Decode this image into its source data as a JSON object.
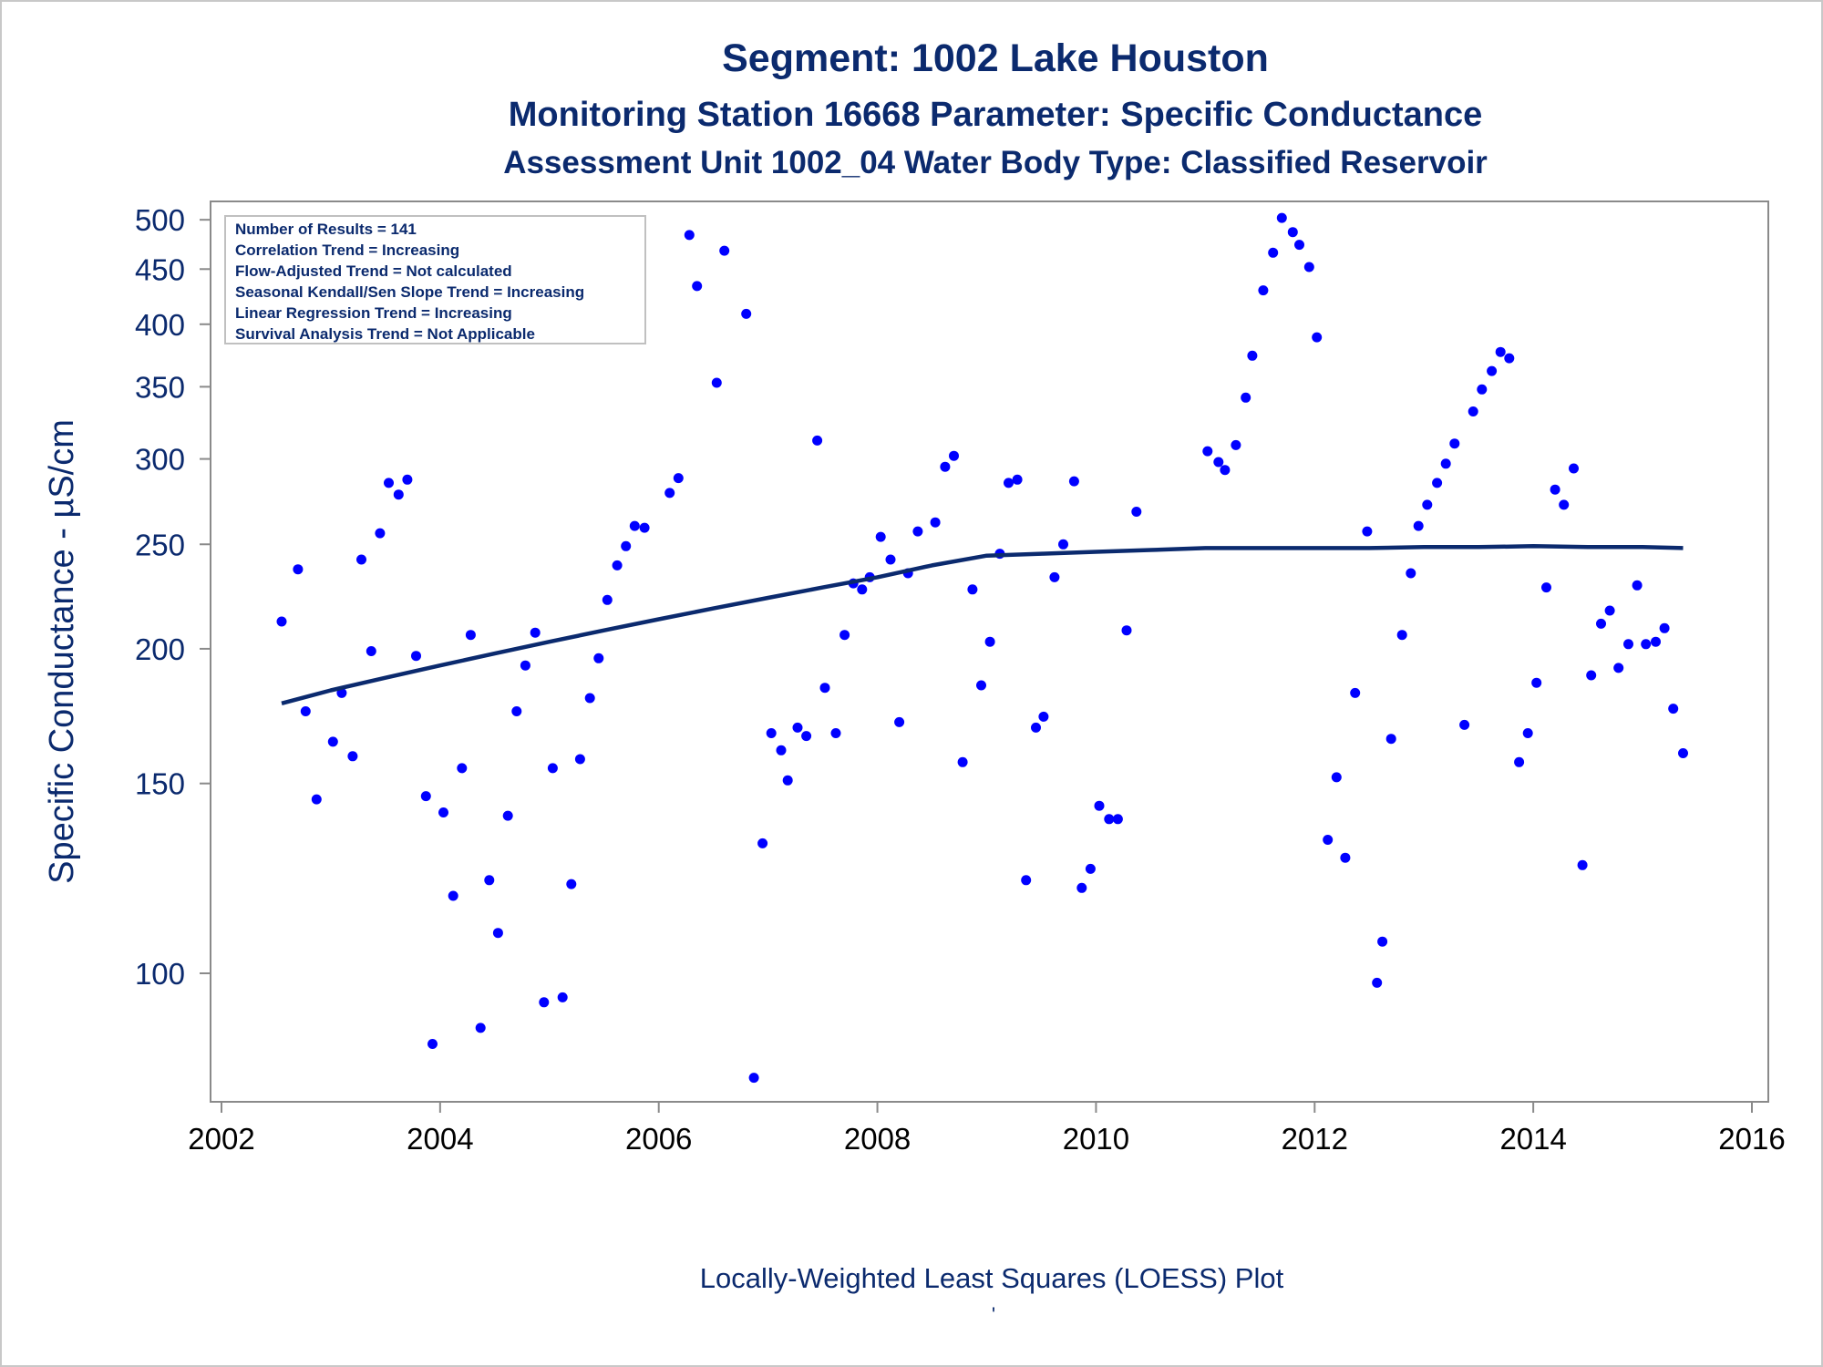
{
  "chart_data": {
    "type": "scatter",
    "title": "Segment: 1002  Lake Houston",
    "subtitle1": "Monitoring Station 16668 Parameter: Specific Conductance",
    "subtitle2": "Assessment Unit 1002_04   Water Body Type: Classified Reservoir",
    "ylabel": "Specific Conductance -  µS/cm",
    "xlabel": "",
    "footnote": "Locally-Weighted Least Squares (LOESS) Plot",
    "footnote_mark": "'",
    "y_scale": "log",
    "xlim": [
      2001.9,
      2016.15
    ],
    "ylim": [
      76,
      520
    ],
    "x_ticks": [
      2002,
      2004,
      2006,
      2008,
      2010,
      2012,
      2014,
      2016
    ],
    "y_ticks": [
      100,
      150,
      200,
      250,
      300,
      350,
      400,
      450,
      500
    ],
    "grid": false,
    "legend_box": {
      "placement": "top-left",
      "lines": [
        "Number of Results = 141",
        "Correlation Trend = Increasing",
        "Flow-Adjusted Trend = Not calculated",
        "Seasonal Kendall/Sen Slope Trend = Increasing",
        "Linear Regression Trend = Increasing",
        "Survival Analysis Trend = Not Applicable"
      ]
    },
    "colors": {
      "text": "#0b2a6e",
      "points": "#0000ff",
      "loess": "#0b2a6e",
      "axis": "#8a8a8a"
    },
    "series": [
      {
        "type": "scatter",
        "points": [
          [
            2002.55,
            212
          ],
          [
            2002.7,
            237
          ],
          [
            2002.77,
            175
          ],
          [
            2002.87,
            145
          ],
          [
            2003.02,
            164
          ],
          [
            2003.1,
            182
          ],
          [
            2003.2,
            159
          ],
          [
            2003.28,
            242
          ],
          [
            2003.37,
            199
          ],
          [
            2003.45,
            256
          ],
          [
            2003.53,
            285
          ],
          [
            2003.62,
            278
          ],
          [
            2003.7,
            287
          ],
          [
            2003.78,
            197
          ],
          [
            2003.87,
            146
          ],
          [
            2003.93,
            86
          ],
          [
            2004.03,
            141
          ],
          [
            2004.12,
            118
          ],
          [
            2004.2,
            155
          ],
          [
            2004.28,
            206
          ],
          [
            2004.37,
            89
          ],
          [
            2004.45,
            122
          ],
          [
            2004.53,
            109
          ],
          [
            2004.62,
            140
          ],
          [
            2004.7,
            175
          ],
          [
            2004.78,
            193
          ],
          [
            2004.87,
            207
          ],
          [
            2004.95,
            94
          ],
          [
            2005.03,
            155
          ],
          [
            2005.12,
            95
          ],
          [
            2005.2,
            121
          ],
          [
            2005.28,
            158
          ],
          [
            2005.37,
            180
          ],
          [
            2005.45,
            196
          ],
          [
            2005.53,
            222
          ],
          [
            2005.62,
            239
          ],
          [
            2005.7,
            249
          ],
          [
            2005.78,
            260
          ],
          [
            2005.87,
            259
          ],
          [
            2006.1,
            279
          ],
          [
            2006.18,
            288
          ],
          [
            2006.28,
            484
          ],
          [
            2006.35,
            434
          ],
          [
            2006.53,
            353
          ],
          [
            2006.6,
            468
          ],
          [
            2006.8,
            409
          ],
          [
            2006.87,
            80
          ],
          [
            2006.95,
            132
          ],
          [
            2007.03,
            167
          ],
          [
            2007.12,
            161
          ],
          [
            2007.18,
            151
          ],
          [
            2007.27,
            169
          ],
          [
            2007.35,
            166
          ],
          [
            2007.45,
            312
          ],
          [
            2007.52,
            184
          ],
          [
            2007.62,
            167
          ],
          [
            2007.7,
            206
          ],
          [
            2007.78,
            230
          ],
          [
            2007.86,
            227
          ],
          [
            2007.93,
            233
          ],
          [
            2008.03,
            254
          ],
          [
            2008.12,
            242
          ],
          [
            2008.2,
            171
          ],
          [
            2008.28,
            235
          ],
          [
            2008.37,
            257
          ],
          [
            2008.53,
            262
          ],
          [
            2008.62,
            295
          ],
          [
            2008.7,
            302
          ],
          [
            2008.78,
            157
          ],
          [
            2008.87,
            227
          ],
          [
            2008.95,
            185
          ],
          [
            2009.03,
            203
          ],
          [
            2009.12,
            245
          ],
          [
            2009.2,
            285
          ],
          [
            2009.28,
            287
          ],
          [
            2009.36,
            122
          ],
          [
            2009.45,
            169
          ],
          [
            2009.52,
            173
          ],
          [
            2009.62,
            233
          ],
          [
            2009.7,
            250
          ],
          [
            2009.8,
            286
          ],
          [
            2009.87,
            120
          ],
          [
            2009.95,
            125
          ],
          [
            2010.03,
            143
          ],
          [
            2010.12,
            139
          ],
          [
            2010.2,
            139
          ],
          [
            2010.28,
            208
          ],
          [
            2010.37,
            268
          ],
          [
            2011.02,
            305
          ],
          [
            2011.12,
            298
          ],
          [
            2011.18,
            293
          ],
          [
            2011.28,
            309
          ],
          [
            2011.37,
            342
          ],
          [
            2011.43,
            374
          ],
          [
            2011.53,
            430
          ],
          [
            2011.62,
            466
          ],
          [
            2011.7,
            502
          ],
          [
            2011.8,
            487
          ],
          [
            2011.86,
            474
          ],
          [
            2011.95,
            452
          ],
          [
            2012.02,
            389
          ],
          [
            2012.12,
            133
          ],
          [
            2012.2,
            152
          ],
          [
            2012.28,
            128
          ],
          [
            2012.37,
            182
          ],
          [
            2012.48,
            257
          ],
          [
            2012.57,
            98
          ],
          [
            2012.62,
            107
          ],
          [
            2012.7,
            165
          ],
          [
            2012.8,
            206
          ],
          [
            2012.88,
            235
          ],
          [
            2012.95,
            260
          ],
          [
            2013.03,
            272
          ],
          [
            2013.12,
            285
          ],
          [
            2013.2,
            297
          ],
          [
            2013.28,
            310
          ],
          [
            2013.37,
            170
          ],
          [
            2013.45,
            332
          ],
          [
            2013.53,
            348
          ],
          [
            2013.62,
            362
          ],
          [
            2013.7,
            377
          ],
          [
            2013.78,
            372
          ],
          [
            2013.87,
            157
          ],
          [
            2013.95,
            167
          ],
          [
            2014.03,
            186
          ],
          [
            2014.12,
            228
          ],
          [
            2014.2,
            281
          ],
          [
            2014.28,
            272
          ],
          [
            2014.37,
            294
          ],
          [
            2014.45,
            126
          ],
          [
            2014.53,
            189
          ],
          [
            2014.62,
            211
          ],
          [
            2014.7,
            217
          ],
          [
            2014.78,
            192
          ],
          [
            2014.87,
            202
          ],
          [
            2014.95,
            229
          ],
          [
            2015.03,
            202
          ],
          [
            2015.12,
            203
          ],
          [
            2015.2,
            209
          ],
          [
            2015.28,
            176
          ],
          [
            2015.37,
            160
          ]
        ]
      },
      {
        "type": "line",
        "points": [
          [
            2002.55,
            178
          ],
          [
            2003.0,
            183
          ],
          [
            2003.5,
            188
          ],
          [
            2004.0,
            193
          ],
          [
            2004.5,
            198
          ],
          [
            2005.0,
            203
          ],
          [
            2005.5,
            208
          ],
          [
            2006.0,
            213
          ],
          [
            2006.5,
            218
          ],
          [
            2007.0,
            223
          ],
          [
            2007.5,
            228
          ],
          [
            2008.0,
            233
          ],
          [
            2008.5,
            239
          ],
          [
            2009.0,
            244
          ],
          [
            2009.5,
            245
          ],
          [
            2010.0,
            246
          ],
          [
            2010.5,
            247
          ],
          [
            2011.0,
            248
          ],
          [
            2011.5,
            248
          ],
          [
            2012.0,
            248
          ],
          [
            2012.5,
            248
          ],
          [
            2013.0,
            248.5
          ],
          [
            2013.5,
            248.5
          ],
          [
            2014.0,
            249
          ],
          [
            2014.5,
            248.5
          ],
          [
            2015.0,
            248.5
          ],
          [
            2015.37,
            248
          ]
        ]
      }
    ]
  }
}
